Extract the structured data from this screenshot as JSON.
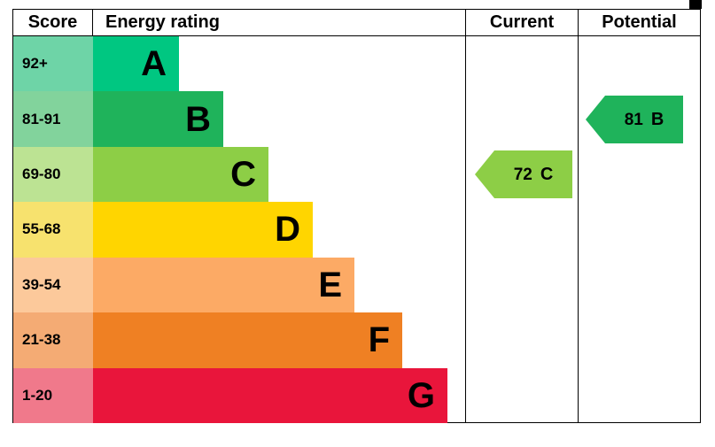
{
  "header": {
    "score": "Score",
    "energy_rating": "Energy rating",
    "current": "Current",
    "potential": "Potential"
  },
  "chart_data": {
    "type": "bar",
    "subtype": "epc-energy-rating",
    "bands": [
      {
        "score": "92+",
        "letter": "A",
        "band_color": "#00c781",
        "score_color": "#6ed4a7",
        "width_pct": 23
      },
      {
        "score": "81-91",
        "letter": "B",
        "band_color": "#1fb35b",
        "score_color": "#82d39c",
        "width_pct": 35
      },
      {
        "score": "69-80",
        "letter": "C",
        "band_color": "#8dce46",
        "score_color": "#bce393",
        "width_pct": 47
      },
      {
        "score": "55-68",
        "letter": "D",
        "band_color": "#ffd500",
        "score_color": "#f7e26e",
        "width_pct": 59
      },
      {
        "score": "39-54",
        "letter": "E",
        "band_color": "#fcaa65",
        "score_color": "#fcc99b",
        "width_pct": 70
      },
      {
        "score": "21-38",
        "letter": "F",
        "band_color": "#ef8023",
        "score_color": "#f4ab74",
        "width_pct": 83
      },
      {
        "score": "1-20",
        "letter": "G",
        "band_color": "#e9153b",
        "score_color": "#f0798b",
        "width_pct": 95
      }
    ],
    "current": {
      "value": "72",
      "letter": "C",
      "color": "#8dce46",
      "row_index": 2
    },
    "potential": {
      "value": "81",
      "letter": "B",
      "color": "#1fb35b",
      "row_index": 1
    }
  }
}
